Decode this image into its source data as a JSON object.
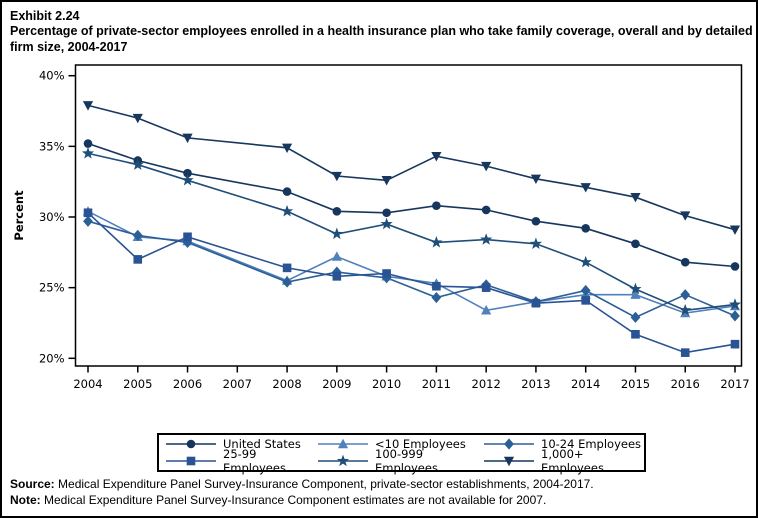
{
  "header": {
    "exhibit_label": "Exhibit 2.24",
    "title": "Percentage of private-sector employees enrolled in a health insurance plan who take family coverage, overall and by detailed firm size, 2004-2017"
  },
  "footer": {
    "source_label": "Source:",
    "source_text": " Medical Expenditure Panel Survey-Insurance Component, private-sector establishments, 2004-2017.",
    "note_label": "Note:",
    "note_text": " Medical Expenditure Panel Survey-Insurance Component estimates are not available for 2007."
  },
  "chart_data": {
    "type": "line",
    "title": "Percentage of private-sector employees enrolled in a health insurance plan who take family coverage, overall and by detailed firm size, 2004-2017",
    "xlabel": "",
    "ylabel": "Percent",
    "ylim": [
      20,
      40
    ],
    "yticks": [
      20,
      25,
      30,
      35,
      40
    ],
    "ytick_suffix": "%",
    "grid": false,
    "legend_position": "bottom",
    "missing_data_note": "2007 estimates not available",
    "categories": [
      "2004",
      "2005",
      "2006",
      "2007",
      "2008",
      "2009",
      "2010",
      "2011",
      "2012",
      "2013",
      "2014",
      "2015",
      "2016",
      "2017"
    ],
    "series": [
      {
        "name": "United States",
        "marker": "circle",
        "color": "#17365D",
        "values": [
          35.2,
          34.0,
          33.1,
          null,
          31.8,
          30.4,
          30.3,
          30.8,
          30.5,
          29.7,
          29.2,
          28.1,
          26.8,
          26.5
        ]
      },
      {
        "name": "<10 Employees",
        "marker": "triangle-up",
        "color": "#4F81BD",
        "values": [
          30.4,
          28.6,
          28.3,
          null,
          25.5,
          27.2,
          25.8,
          25.3,
          23.4,
          24.0,
          24.5,
          24.5,
          23.2,
          23.7
        ]
      },
      {
        "name": "10-24 Employees",
        "marker": "diamond",
        "color": "#2B5F97",
        "values": [
          29.7,
          28.7,
          28.2,
          null,
          25.4,
          26.1,
          25.7,
          24.3,
          25.2,
          24.0,
          24.8,
          22.9,
          24.5,
          23.0
        ]
      },
      {
        "name": "25-99 Employees",
        "marker": "square",
        "color": "#2A5394",
        "values": [
          30.3,
          27.0,
          28.6,
          null,
          26.4,
          25.8,
          26.0,
          25.1,
          25.0,
          23.9,
          24.1,
          21.7,
          20.4,
          21.0
        ]
      },
      {
        "name": "100-999 Employees",
        "marker": "star",
        "color": "#1F4E79",
        "values": [
          34.5,
          33.7,
          32.6,
          null,
          30.4,
          28.8,
          29.5,
          28.2,
          28.4,
          28.1,
          26.8,
          24.9,
          23.4,
          23.8
        ]
      },
      {
        "name": "1,000+ Employees",
        "marker": "triangle-down",
        "color": "#17375E",
        "values": [
          37.9,
          37.0,
          35.6,
          null,
          34.9,
          32.9,
          32.6,
          34.3,
          33.6,
          32.7,
          32.1,
          31.4,
          30.1,
          29.1
        ]
      }
    ]
  }
}
